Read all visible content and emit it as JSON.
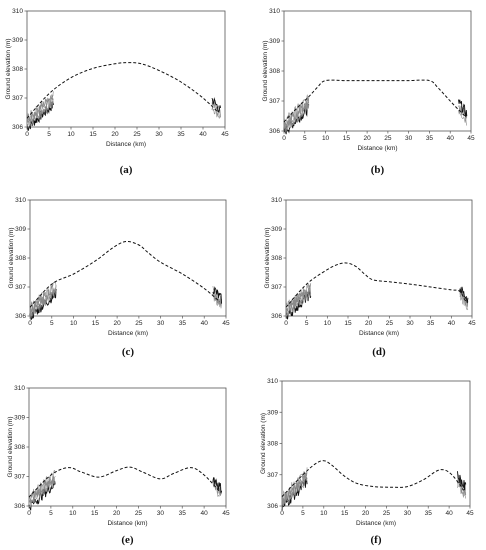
{
  "chart_data": [
    {
      "panel": "(a)",
      "type": "line",
      "xlabel": "Distance (km)",
      "ylabel": "Ground elevation (m)",
      "xlim": [
        0,
        45
      ],
      "ylim": [
        306,
        310
      ],
      "xticks": [
        "0",
        "5",
        "10",
        "15",
        "20",
        "25",
        "30",
        "35",
        "40",
        "45"
      ],
      "yticks": [
        "306",
        "307",
        "308",
        "309",
        "310"
      ],
      "series": [
        {
          "style": "dashed",
          "x": [
            0,
            5,
            10,
            15,
            20,
            23,
            26,
            30,
            35,
            40,
            43.5
          ],
          "y": [
            306.3,
            307.15,
            307.7,
            308.02,
            308.18,
            308.22,
            308.18,
            307.95,
            307.55,
            307.0,
            306.5
          ]
        }
      ]
    },
    {
      "panel": "(b)",
      "type": "line",
      "xlabel": "Distance (km)",
      "ylabel": "Ground elevation (m)",
      "xlim": [
        0,
        45
      ],
      "ylim": [
        306,
        310
      ],
      "xticks": [
        "0",
        "5",
        "10",
        "15",
        "20",
        "25",
        "30",
        "35",
        "40",
        "45"
      ],
      "yticks": [
        "306",
        "307",
        "308",
        "309",
        "310"
      ],
      "series": [
        {
          "style": "dashed",
          "x": [
            0,
            3,
            6,
            8,
            10,
            15,
            20,
            25,
            30,
            35,
            37,
            39,
            41,
            43.5
          ],
          "y": [
            306.3,
            306.75,
            307.15,
            307.45,
            307.68,
            307.68,
            307.68,
            307.68,
            307.68,
            307.68,
            307.45,
            307.15,
            306.85,
            306.5
          ]
        }
      ]
    },
    {
      "panel": "(c)",
      "type": "line",
      "xlabel": "Distance (km)",
      "ylabel": "Ground elevation (m)",
      "xlim": [
        0,
        45
      ],
      "ylim": [
        306,
        310
      ],
      "xticks": [
        "0",
        "5",
        "10",
        "15",
        "20",
        "25",
        "30",
        "35",
        "40",
        "45"
      ],
      "yticks": [
        "306",
        "307",
        "308",
        "309",
        "310"
      ],
      "series": [
        {
          "style": "dashed",
          "x": [
            0,
            5,
            10,
            15,
            19,
            22,
            25,
            27,
            30,
            35,
            40,
            43.5
          ],
          "y": [
            306.3,
            307.1,
            307.45,
            307.9,
            308.35,
            308.57,
            308.45,
            308.2,
            307.85,
            307.45,
            306.95,
            306.5
          ]
        }
      ]
    },
    {
      "panel": "(d)",
      "type": "line",
      "xlabel": "Distance (km)",
      "ylabel": "Ground elevation (m)",
      "xlim": [
        0,
        45
      ],
      "ylim": [
        306,
        310
      ],
      "xticks": [
        "0",
        "5",
        "10",
        "15",
        "20",
        "25",
        "30",
        "35",
        "40",
        "45"
      ],
      "yticks": [
        "306",
        "307",
        "308",
        "309",
        "310"
      ],
      "series": [
        {
          "style": "dashed",
          "x": [
            0,
            5,
            10,
            13,
            15,
            17,
            19,
            21,
            25,
            30,
            35,
            40,
            42,
            43.5
          ],
          "y": [
            306.3,
            307.1,
            307.6,
            307.8,
            307.82,
            307.7,
            307.45,
            307.25,
            307.18,
            307.1,
            307.0,
            306.9,
            306.85,
            306.5
          ]
        }
      ]
    },
    {
      "panel": "(e)",
      "type": "line",
      "xlabel": "Distance (km)",
      "ylabel": "Ground elevation (m)",
      "xlim": [
        0,
        45
      ],
      "ylim": [
        306,
        310
      ],
      "xticks": [
        "0",
        "5",
        "10",
        "15",
        "20",
        "25",
        "30",
        "35",
        "40",
        "45"
      ],
      "yticks": [
        "306",
        "307",
        "308",
        "309",
        "310"
      ],
      "series": [
        {
          "style": "dashed",
          "x": [
            0,
            5,
            9,
            12,
            16,
            20,
            23,
            26,
            30,
            33,
            37,
            40,
            43.5
          ],
          "y": [
            306.3,
            307.05,
            307.3,
            307.15,
            306.98,
            307.2,
            307.32,
            307.15,
            306.92,
            307.1,
            307.3,
            307.05,
            306.5
          ]
        }
      ]
    },
    {
      "panel": "(f)",
      "type": "line",
      "xlabel": "Distance (km)",
      "ylabel": "Ground elevation (m)",
      "xlim": [
        0,
        45
      ],
      "ylim": [
        306,
        310
      ],
      "xticks": [
        "0",
        "5",
        "10",
        "15",
        "20",
        "25",
        "30",
        "35",
        "40",
        "45"
      ],
      "yticks": [
        "306",
        "307",
        "308",
        "309",
        "310"
      ],
      "series": [
        {
          "style": "dashed",
          "x": [
            0,
            5,
            8,
            10,
            12,
            15,
            18,
            22,
            26,
            30,
            34,
            37,
            39,
            41,
            43.5
          ],
          "y": [
            306.3,
            307.0,
            307.35,
            307.45,
            307.3,
            306.95,
            306.72,
            306.62,
            306.6,
            306.62,
            306.85,
            307.12,
            307.15,
            306.95,
            306.5
          ]
        }
      ]
    }
  ]
}
